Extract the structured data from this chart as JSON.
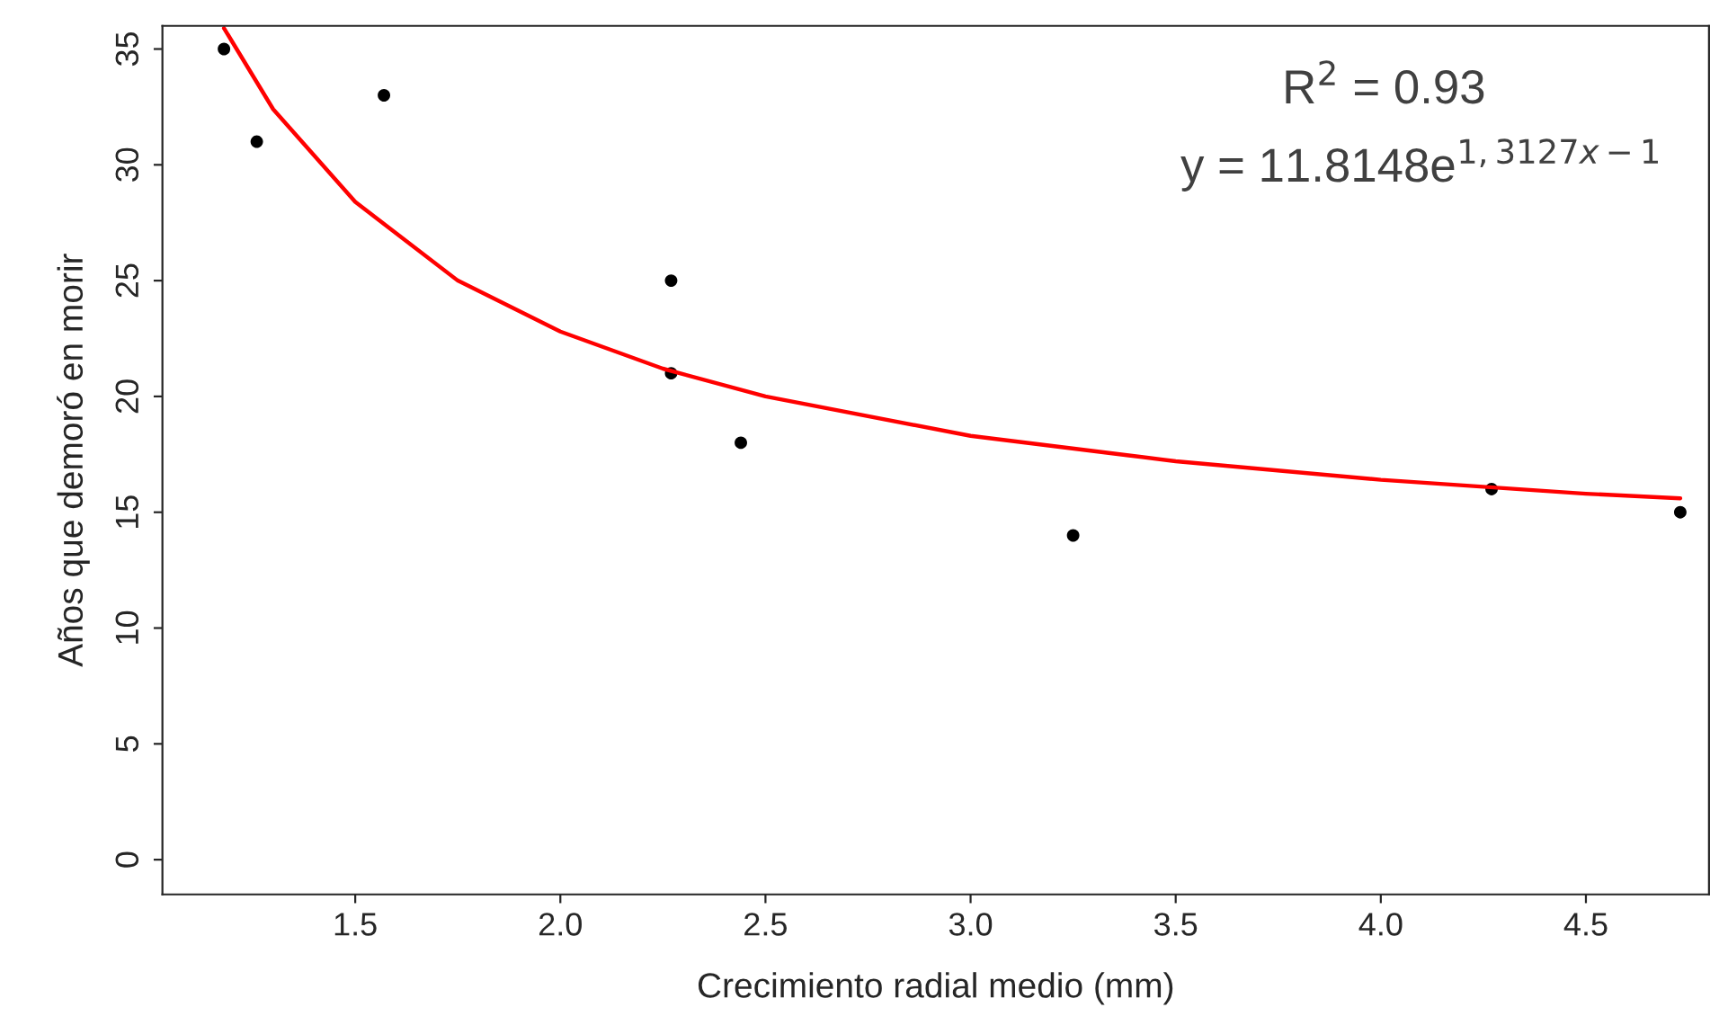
{
  "chart_data": {
    "type": "scatter",
    "xlabel": "Crecimiento radial medio (mm)",
    "ylabel": "Años que demoró en morir",
    "series": [
      {
        "color": "#000000",
        "marker": "circle",
        "x": [
          1.18,
          1.26,
          1.57,
          2.27,
          2.27,
          2.44,
          3.25,
          4.27,
          4.73
        ],
        "values": [
          35,
          31,
          33,
          25,
          21,
          18,
          14,
          16,
          15
        ]
      },
      {
        "type": "line",
        "color": "#ff0000",
        "marker": "none",
        "line_style": "solid",
        "x": [
          1.18,
          1.3,
          1.5,
          1.75,
          2.0,
          2.25,
          2.5,
          3.0,
          3.5,
          4.0,
          4.5,
          4.73
        ],
        "values": [
          35.9,
          32.4,
          28.4,
          25.0,
          22.8,
          21.2,
          20.0,
          18.3,
          17.2,
          16.4,
          15.8,
          15.6
        ]
      }
    ],
    "xlim": [
      1.03,
      4.8
    ],
    "ylim": [
      -1.5,
      36
    ],
    "xticks": [
      1.5,
      {
        "value": 2,
        "label": "2.0"
      },
      2.5,
      {
        "value": 3,
        "label": "3.0"
      },
      3.5,
      {
        "value": 4,
        "label": "4.0"
      },
      4.5
    ],
    "yticks": [
      0,
      5,
      10,
      15,
      20,
      25,
      30,
      35
    ],
    "annotations": [
      "R$^{2}$ = 0.93",
      "y = 11.8148e$^{1,3127x−1}$"
    ],
    "grid": false,
    "legend": false
  }
}
